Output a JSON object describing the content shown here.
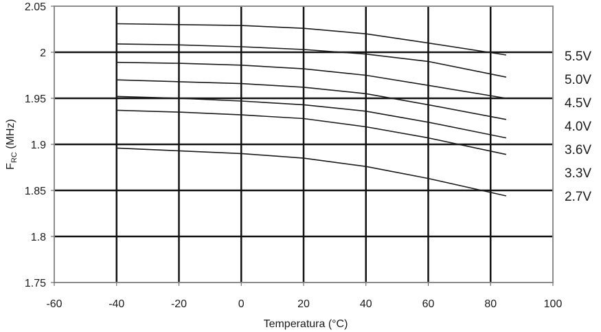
{
  "chart_data": {
    "type": "line",
    "title": "",
    "xlabel": "Temperatura (°C)",
    "ylabel_main": "F",
    "ylabel_sub": "RC",
    "ylabel_tail": " (MHz)",
    "xlim": [
      -60,
      100
    ],
    "ylim": [
      1.75,
      2.05
    ],
    "x_ticks": [
      "-60",
      "-40",
      "-20",
      "0",
      "20",
      "40",
      "60",
      "80",
      "100"
    ],
    "y_ticks": [
      "1.75",
      "1.8",
      "1.85",
      "1.9",
      "1.95",
      "2",
      "2.05"
    ],
    "grid": true,
    "legend_placement": "right",
    "x": [
      -40,
      -20,
      0,
      20,
      40,
      60,
      85
    ],
    "series": [
      {
        "name": "5.5V",
        "values": [
          2.031,
          2.03,
          2.029,
          2.026,
          2.02,
          2.01,
          1.997
        ]
      },
      {
        "name": "5.0V",
        "values": [
          2.009,
          2.008,
          2.006,
          2.003,
          1.998,
          1.99,
          1.973
        ]
      },
      {
        "name": "4.5V",
        "values": [
          1.989,
          1.988,
          1.986,
          1.982,
          1.975,
          1.964,
          1.95
        ]
      },
      {
        "name": "4.0V",
        "values": [
          1.97,
          1.968,
          1.966,
          1.962,
          1.955,
          1.943,
          1.927
        ]
      },
      {
        "name": "3.6V",
        "values": [
          1.952,
          1.95,
          1.947,
          1.943,
          1.936,
          1.924,
          1.907
        ]
      },
      {
        "name": "3.3V",
        "values": [
          1.937,
          1.935,
          1.932,
          1.928,
          1.919,
          1.907,
          1.889
        ]
      },
      {
        "name": "2.7V",
        "values": [
          1.896,
          1.893,
          1.89,
          1.885,
          1.876,
          1.863,
          1.844
        ]
      }
    ],
    "colors": {
      "line": "#1a1a1a",
      "grid": "#111111",
      "frame": "#8c8c8c"
    }
  }
}
